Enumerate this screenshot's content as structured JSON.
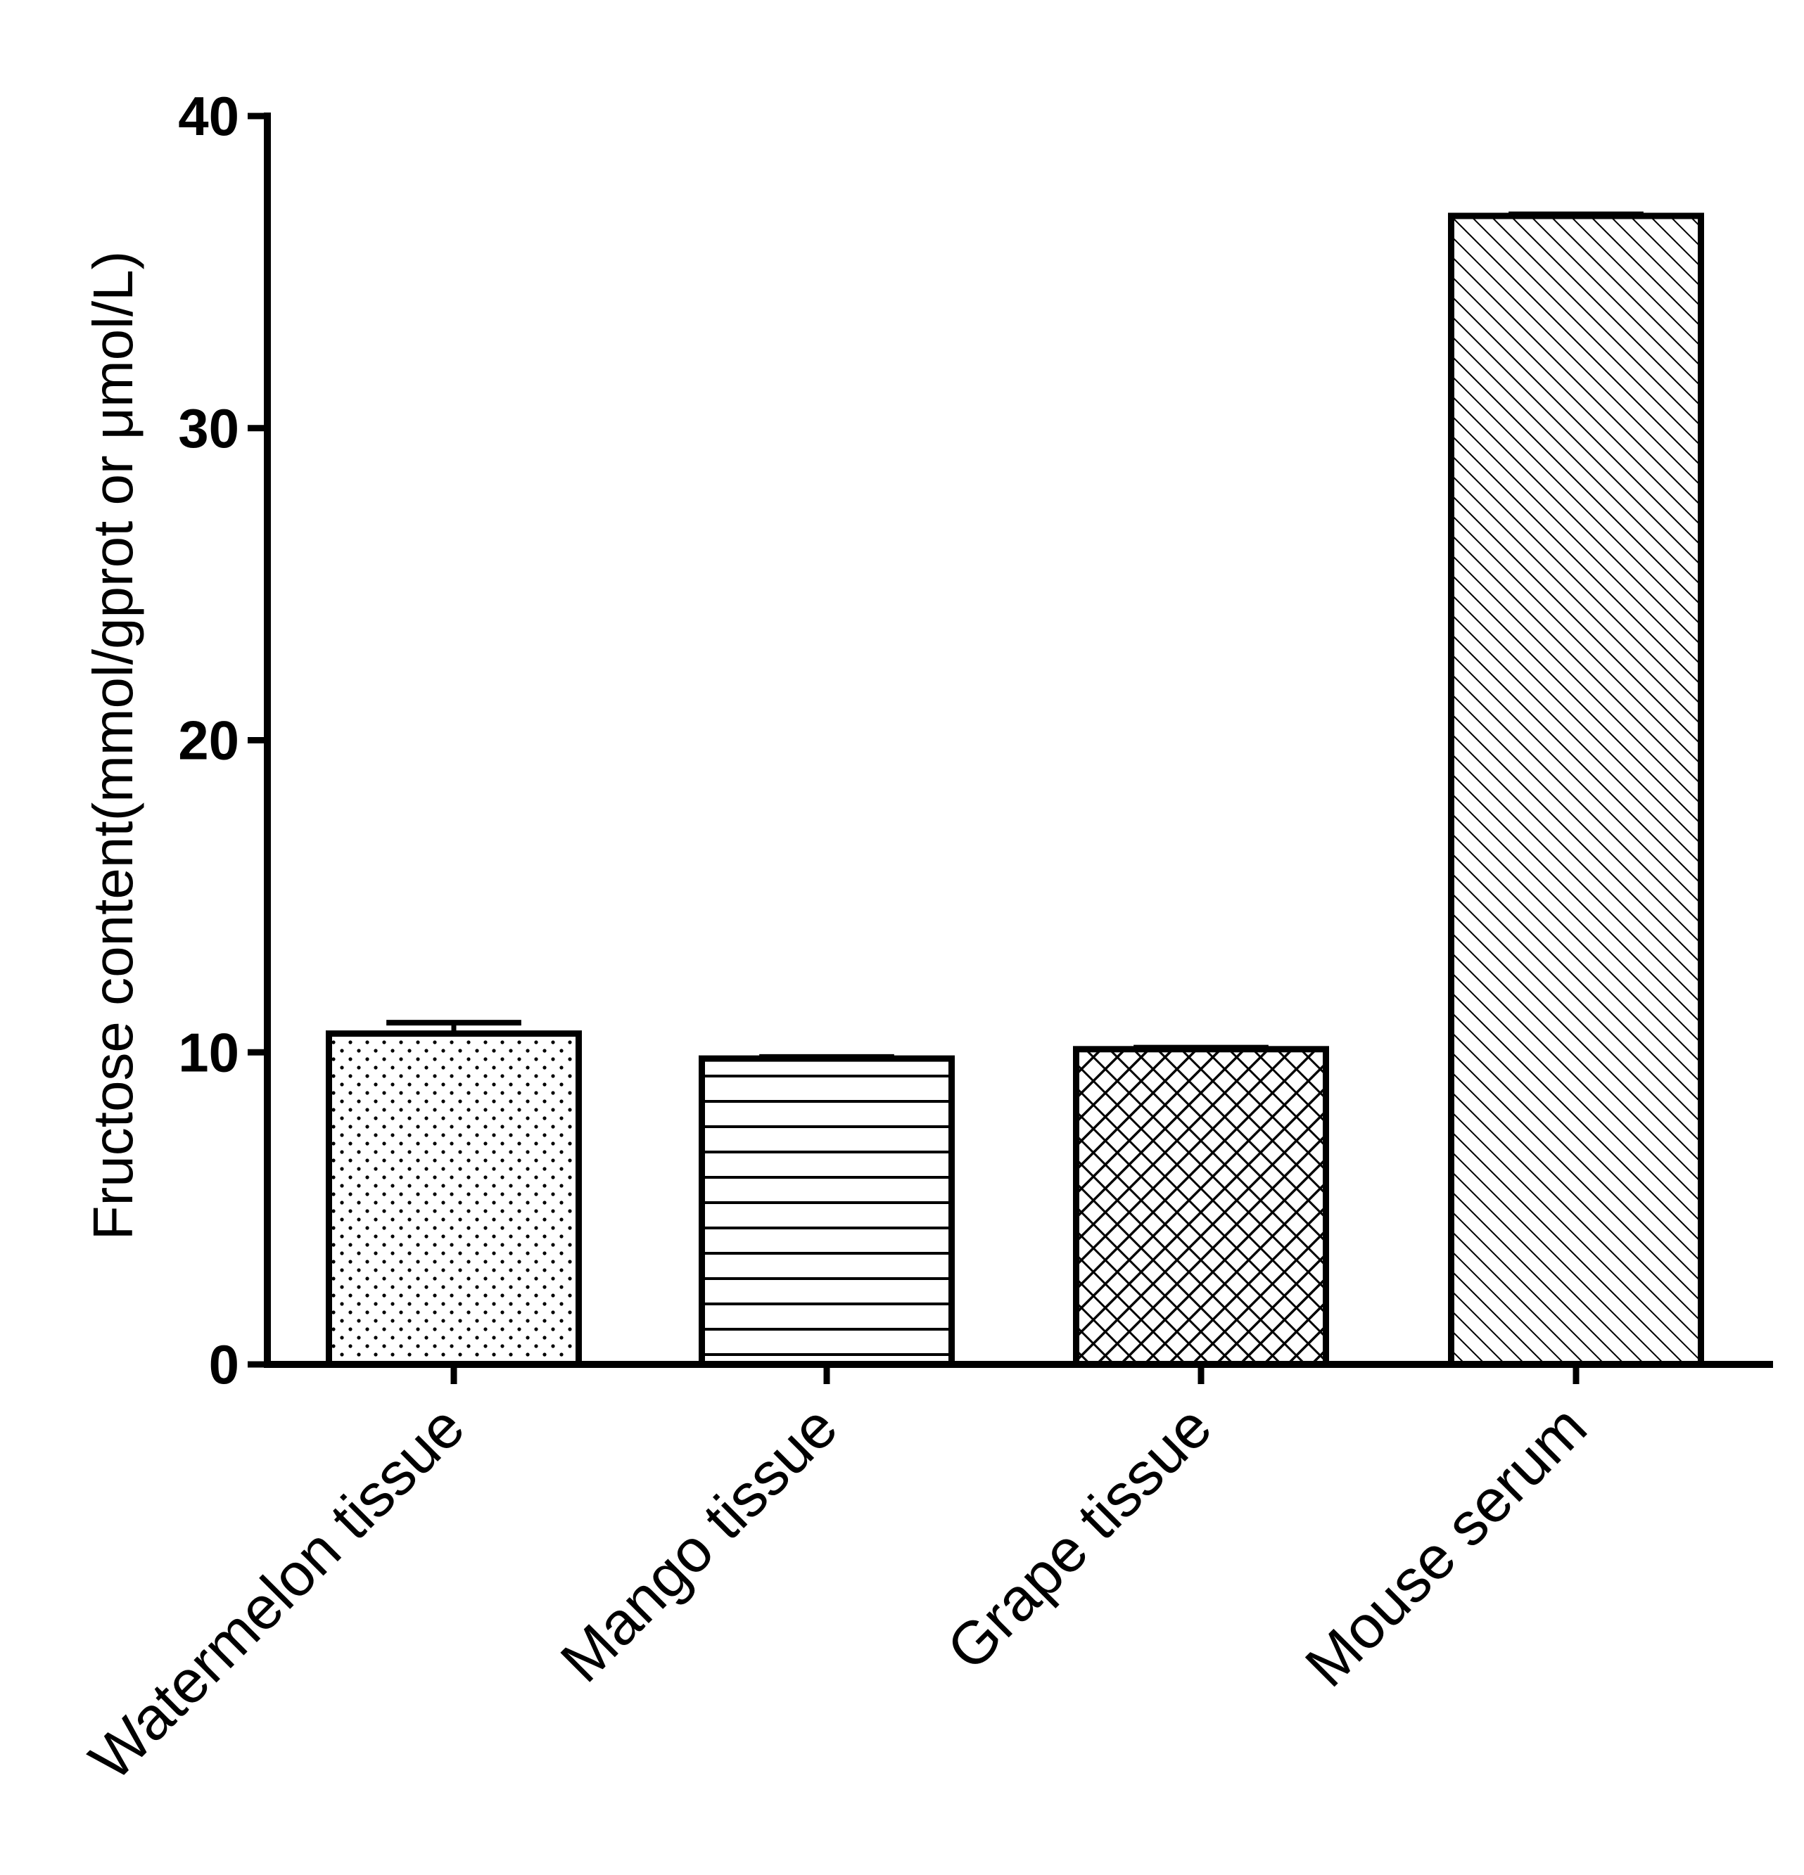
{
  "chart_data": {
    "type": "bar",
    "categories": [
      "Watermelon tissue",
      "Mango tissue",
      "Grape tissue",
      "Mouse serum"
    ],
    "values": [
      10.6,
      9.8,
      10.1,
      36.8
    ],
    "errors": [
      0.35,
      0.05,
      0.05,
      0.05
    ],
    "patterns": [
      "dots",
      "horizontal-lines",
      "crosshatch",
      "diagonal-lines"
    ],
    "ylabel": "Fructose content(mmol/gprot or μmol/L)",
    "xlabel": "",
    "ylim": [
      0,
      40
    ],
    "yticks": [
      0,
      10,
      20,
      30,
      40
    ],
    "ytick_labels": [
      "0",
      "10",
      "20",
      "30",
      "40"
    ],
    "grid": false,
    "colors": {
      "stroke": "#000000",
      "fill": "#ffffff"
    }
  }
}
